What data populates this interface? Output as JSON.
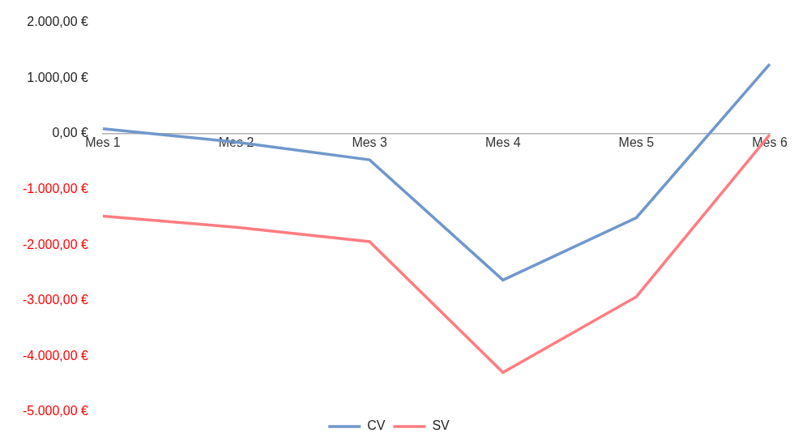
{
  "chart_data": {
    "type": "line",
    "categories": [
      "Mes 1",
      "Mes 2",
      "Mes 3",
      "Mes 4",
      "Mes 5",
      "Mes 6"
    ],
    "series": [
      {
        "name": "CV",
        "color": "#6f97cc",
        "values": [
          90,
          -150,
          -470,
          -2630,
          -1510,
          1250
        ]
      },
      {
        "name": "SV",
        "color": "#ff7c80",
        "values": [
          -1480,
          -1680,
          -1940,
          -4290,
          -2930,
          -20
        ]
      }
    ],
    "ylim": [
      -5000,
      2000
    ],
    "yticks": [
      {
        "value": -5000,
        "label": "-5.000,00 €"
      },
      {
        "value": -4000,
        "label": "-4.000,00 €"
      },
      {
        "value": -3000,
        "label": "-3.000,00 €"
      },
      {
        "value": -2000,
        "label": "-2.000,00 €"
      },
      {
        "value": -1000,
        "label": "-1.000,00 €"
      },
      {
        "value": 0,
        "label": "0,00 €"
      },
      {
        "value": 1000,
        "label": "1.000,00 €"
      },
      {
        "value": 2000,
        "label": "2.000,00 €"
      }
    ],
    "grid": false,
    "legend": "bottom"
  }
}
